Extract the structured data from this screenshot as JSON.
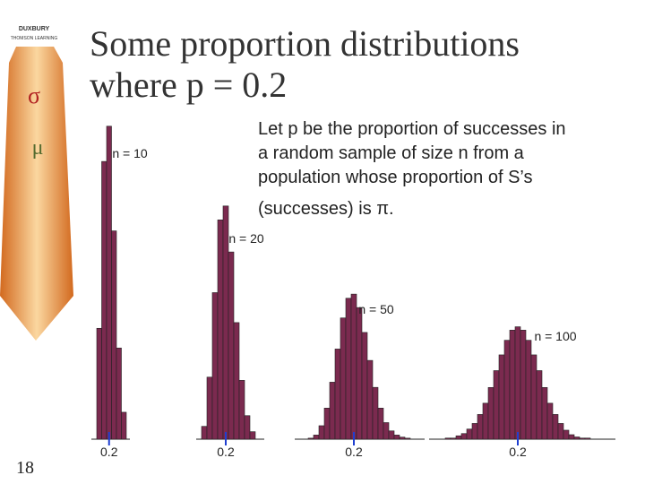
{
  "slide": {
    "title_lines": [
      "Some proportion distributions",
      "where p = 0.2"
    ],
    "body_lines": [
      "Let p be the proportion of successes in",
      "a random sample of size n from a",
      "population whose proportion of S’s",
      "(successes) is π."
    ],
    "page_number": "18",
    "logo": {
      "publisher": "DUXBURY",
      "imprint": "THOMSON LEARNING",
      "symbols": [
        "σ",
        "μ"
      ]
    }
  },
  "chart_data": [
    {
      "type": "histogram",
      "title": "n = 10",
      "color": "#7b2a4f",
      "bins": [
        -0.05,
        0.05,
        0.15,
        0.25,
        0.35,
        0.45,
        0.55
      ],
      "values": [
        10.7,
        26.8,
        30.2,
        20.1,
        8.8,
        2.6
      ],
      "xlim": [
        -0.05,
        0.55
      ],
      "ylim": [
        0,
        32
      ],
      "xticks": [
        0.2
      ]
    },
    {
      "type": "histogram",
      "title": "n = 20",
      "color": "#7b2a4f",
      "bins": [
        -0.025,
        0.025,
        0.075,
        0.125,
        0.175,
        0.225,
        0.275,
        0.325,
        0.375,
        0.425,
        0.475
      ],
      "values": [
        1.2,
        5.8,
        13.7,
        20.5,
        21.8,
        17.5,
        10.9,
        5.5,
        2.2,
        0.7
      ],
      "xlim": [
        -0.025,
        0.525
      ],
      "ylim": [
        0,
        31
      ],
      "xticks": [
        0.2
      ]
    },
    {
      "type": "histogram",
      "title": "n = 50",
      "color": "#7b2a4f",
      "bins": [
        0.03,
        0.05,
        0.07,
        0.09,
        0.11,
        0.13,
        0.15,
        0.17,
        0.19,
        0.21,
        0.23,
        0.25,
        0.27,
        0.29,
        0.31,
        0.33,
        0.35,
        0.37,
        0.39,
        0.41
      ],
      "values": [
        0.1,
        0.4,
        1.3,
        3.0,
        5.5,
        8.7,
        11.7,
        13.6,
        14.0,
        12.7,
        10.3,
        7.6,
        5.0,
        3.0,
        1.6,
        0.8,
        0.4,
        0.2,
        0.1
      ],
      "xlim": [
        0.0,
        0.45
      ],
      "ylim": [
        0,
        32
      ],
      "xticks": [
        0.2
      ]
    },
    {
      "type": "histogram",
      "title": "n = 100",
      "color": "#7b2a4f",
      "bins": [
        0.065,
        0.075,
        0.085,
        0.095,
        0.105,
        0.115,
        0.125,
        0.135,
        0.145,
        0.155,
        0.165,
        0.175,
        0.185,
        0.195,
        0.205,
        0.215,
        0.225,
        0.235,
        0.245,
        0.255,
        0.265,
        0.275,
        0.285,
        0.295,
        0.305,
        0.315,
        0.325,
        0.335
      ],
      "values": [
        0.1,
        0.1,
        0.3,
        0.5,
        0.9,
        1.4,
        2.2,
        3.2,
        4.6,
        6.1,
        7.5,
        8.8,
        9.7,
        10.0,
        9.7,
        8.8,
        7.5,
        6.1,
        4.6,
        3.2,
        2.2,
        1.4,
        0.8,
        0.4,
        0.2,
        0.1,
        0.1
      ],
      "xlim": [
        0.045,
        0.375
      ],
      "ylim": [
        0,
        29.5
      ],
      "xticks": [
        0.2
      ]
    }
  ]
}
